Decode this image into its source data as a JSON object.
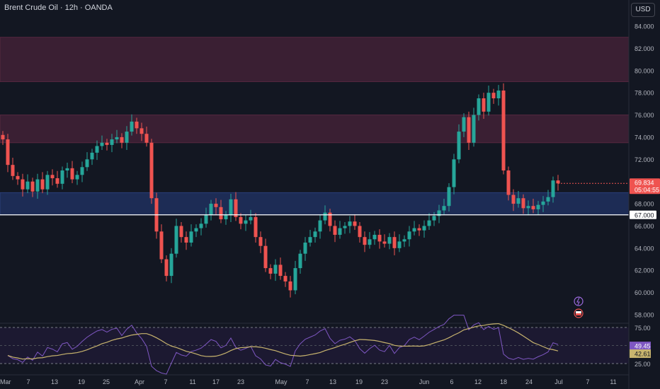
{
  "header": {
    "title": "Brent Crude Oil · 12h · OANDA"
  },
  "currency_button": "USD",
  "colors": {
    "background": "#131722",
    "up": "#26a69a",
    "down": "#ef5350",
    "resistance_zone": "#3a1f33",
    "support_zone": "#1d2c55",
    "level_line": "#ffffff",
    "rsi_line": "#7e57c2",
    "rsi_ma": "#c8b46e"
  },
  "icons": [
    "bolt-icon",
    "flag-icon"
  ],
  "chart_data": [
    {
      "type": "candlestick",
      "title": "Brent Crude Oil · 12h · OANDA",
      "ylim": [
        56.5,
        85.5
      ],
      "y_ticks": [
        "84.000",
        "82.000",
        "80.000",
        "78.000",
        "76.000",
        "74.000",
        "72.000",
        "70.000",
        "68.000",
        "66.000",
        "64.000",
        "62.000",
        "60.000",
        "58.000"
      ],
      "x_tick_labels": [
        "Mar",
        "7",
        "13",
        "19",
        "25",
        "Apr",
        "7",
        "11",
        "17",
        "23",
        "May",
        "7",
        "13",
        "19",
        "23",
        "Jun",
        "6",
        "12",
        "18",
        "24",
        "Jul",
        "7",
        "11"
      ],
      "price_label": "69.834",
      "countdown": "05:04:55",
      "level_label": "67.000",
      "horizontal_level": 67.0,
      "zones": [
        {
          "type": "resistance",
          "from": 79.0,
          "to": 83.0
        },
        {
          "type": "resistance",
          "from": 73.5,
          "to": 76.0
        },
        {
          "type": "support",
          "from": 67.0,
          "to": 69.0
        }
      ],
      "close_path": [
        73.8,
        71.5,
        70.5,
        70.2,
        69.3,
        70.0,
        69.1,
        70.2,
        69.3,
        70.6,
        70.3,
        69.8,
        71.0,
        71.2,
        70.2,
        70.6,
        71.3,
        72.0,
        72.6,
        73.2,
        73.5,
        73.3,
        73.8,
        74.0,
        73.5,
        74.5,
        75.4,
        74.8,
        74.3,
        73.5,
        68.5,
        65.5,
        63.0,
        61.5,
        63.5,
        66.0,
        65.0,
        64.5,
        65.5,
        65.8,
        66.2,
        67.0,
        68.0,
        67.7,
        66.6,
        67.0,
        68.4,
        66.8,
        66.2,
        66.5,
        66.8,
        65.0,
        64.2,
        62.2,
        61.7,
        62.5,
        61.5,
        61.0,
        60.2,
        62.2,
        63.5,
        64.5,
        65.0,
        65.5,
        66.5,
        67.2,
        66.0,
        65.2,
        65.8,
        66.0,
        66.4,
        66.0,
        65.0,
        64.3,
        64.8,
        65.2,
        64.6,
        64.4,
        65.0,
        64.0,
        64.6,
        64.8,
        65.5,
        65.8,
        65.6,
        66.0,
        66.5,
        66.9,
        67.4,
        67.8,
        69.5,
        72.0,
        74.5,
        75.8,
        73.5,
        76.0,
        77.5,
        76.3,
        78.0,
        77.5,
        78.2,
        71.0,
        68.8,
        68.0,
        68.5,
        67.6,
        67.8,
        67.5,
        67.9,
        68.2,
        68.6,
        70.1,
        69.834
      ],
      "rsi_panel": {
        "levels": [
          "75.00",
          "25.00"
        ],
        "rsi_value": "49.45",
        "ma_value": "42.61"
      }
    }
  ]
}
